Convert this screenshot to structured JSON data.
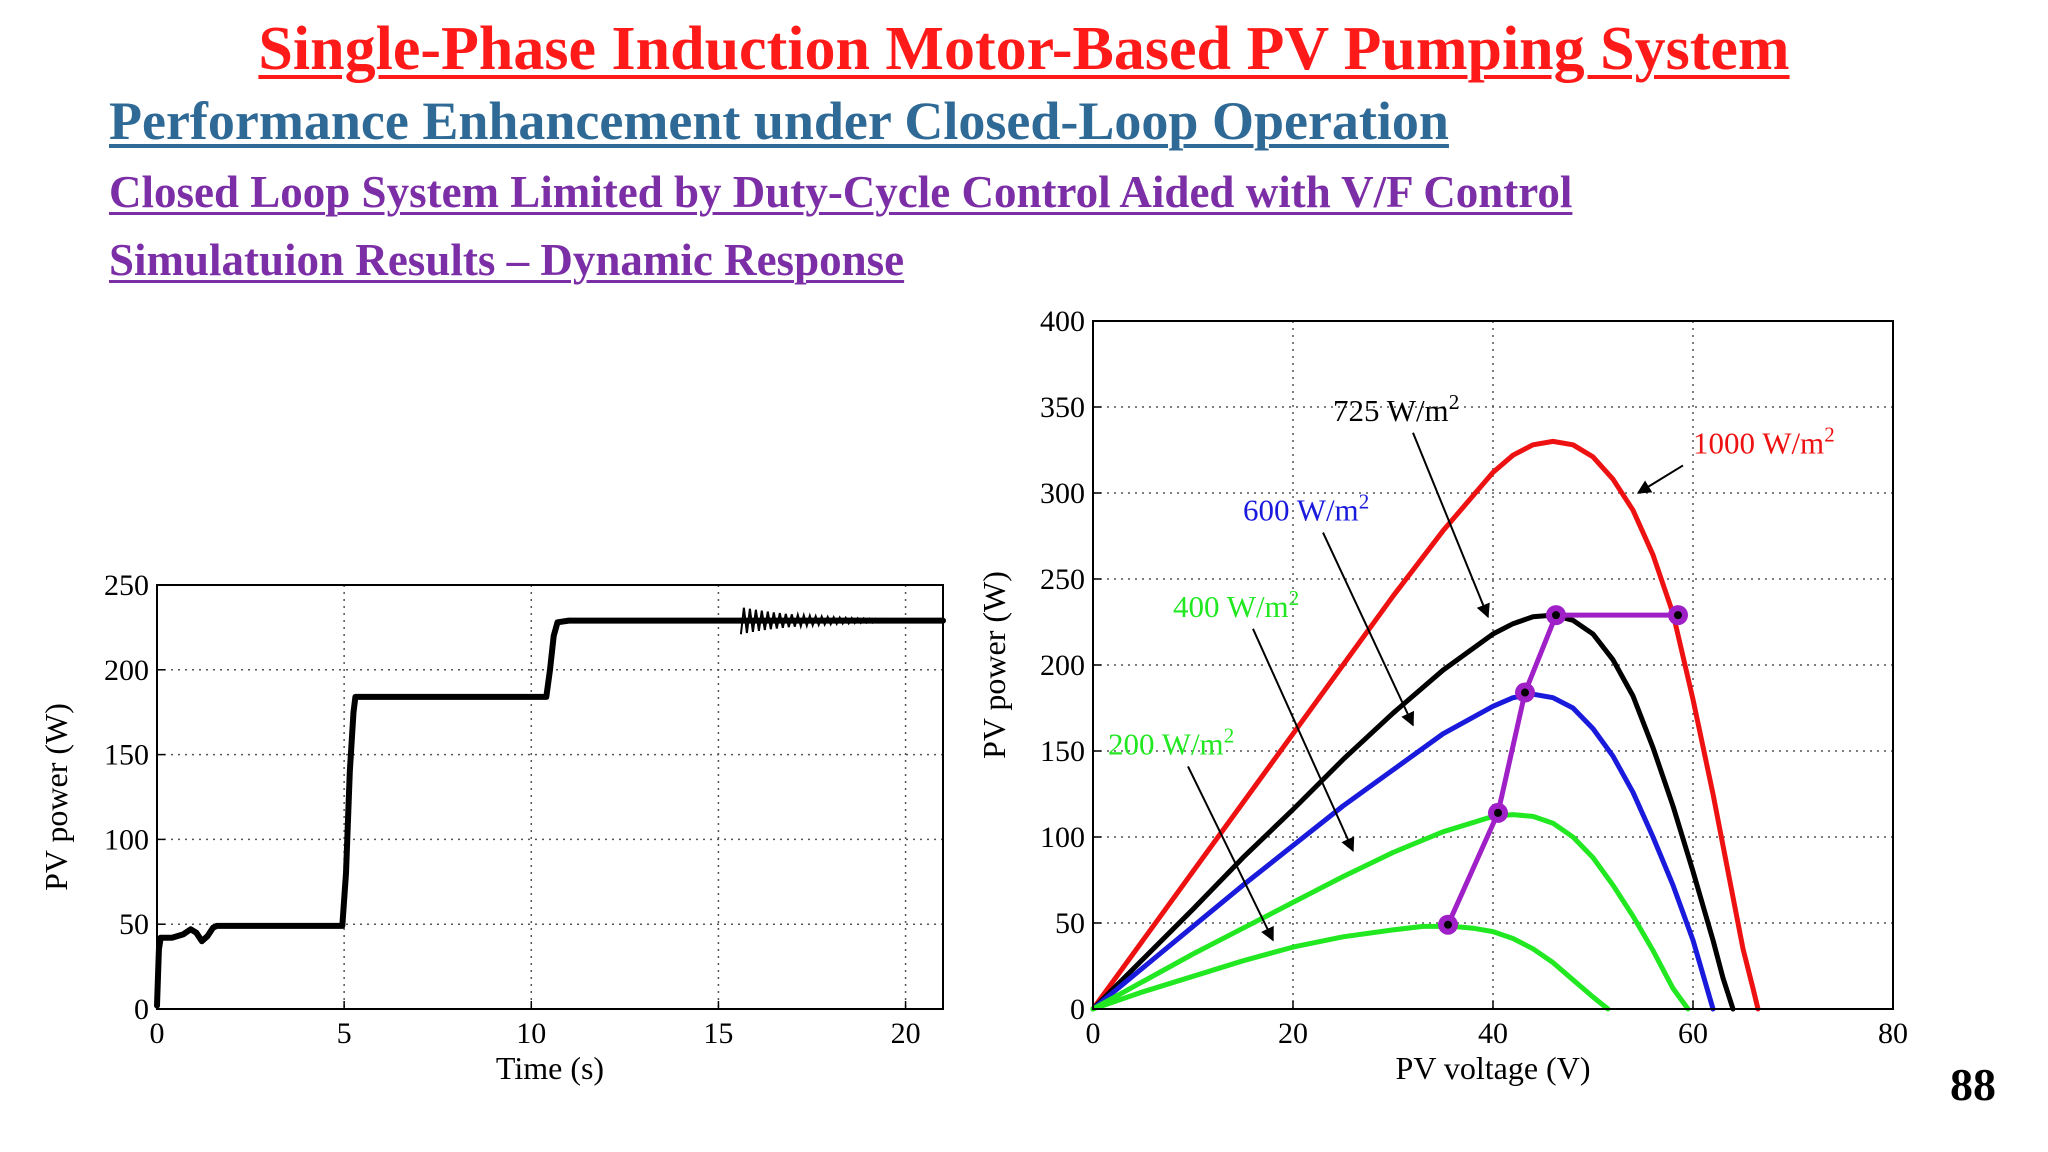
{
  "slide": {
    "title": "Single-Phase Induction Motor-Based PV Pumping System",
    "subtitle": "Performance Enhancement under Closed-Loop Operation",
    "line3": "Closed Loop System Limited by Duty-Cycle Control Aided with V/F Control",
    "line4": "Simulatuion Results – Dynamic Response",
    "page_number": "88"
  },
  "colors": {
    "title": "#ff1a1a",
    "subtitle": "#2f6a96",
    "purple": "#7b2ea6",
    "red": "#ee1111",
    "black": "#000000",
    "blue": "#1a1adc",
    "green": "#22e822",
    "magenta": "#a020c8"
  },
  "chart_data": [
    {
      "type": "line",
      "xlabel": "Time (s)",
      "ylabel": "PV power (W)",
      "xlim": [
        0,
        21
      ],
      "ylim": [
        0,
        250
      ],
      "xticks": [
        0,
        5,
        10,
        15,
        20
      ],
      "yticks": [
        0,
        50,
        100,
        150,
        200,
        250
      ],
      "grid": true,
      "series": [
        {
          "color": "#000000",
          "x": [
            0,
            0.05,
            0.1,
            0.4,
            0.7,
            0.9,
            1.05,
            1.2,
            1.35,
            1.5,
            1.6,
            2.0,
            3.0,
            4.0,
            4.95,
            5.05,
            5.15,
            5.25,
            5.3,
            6,
            7,
            8,
            9,
            10,
            10.4,
            10.5,
            10.6,
            10.7,
            11,
            12,
            13,
            14,
            15,
            15.5,
            16,
            17,
            18,
            19,
            20,
            21
          ],
          "y": [
            2,
            35,
            42,
            42,
            44,
            47,
            45,
            40,
            43,
            48,
            49,
            49,
            49,
            49,
            49,
            80,
            140,
            175,
            184,
            184,
            184,
            184,
            184,
            184,
            184,
            200,
            220,
            228,
            229,
            229,
            229,
            229,
            229,
            229,
            229,
            229,
            229,
            229,
            229,
            229
          ]
        }
      ]
    },
    {
      "type": "line",
      "xlabel": "PV voltage (V)",
      "ylabel": "PV power (W)",
      "xlim": [
        0,
        80
      ],
      "ylim": [
        0,
        400
      ],
      "xticks": [
        0,
        20,
        40,
        60,
        80
      ],
      "yticks": [
        0,
        50,
        100,
        150,
        200,
        250,
        300,
        350,
        400
      ],
      "grid": true,
      "series": [
        {
          "name": "1000 W/m2",
          "color": "#ee1111",
          "x": [
            0,
            5,
            10,
            15,
            20,
            25,
            30,
            35,
            40,
            42,
            44,
            46,
            48,
            50,
            52,
            54,
            56,
            58,
            60,
            62,
            64,
            65,
            66,
            66.5
          ],
          "y": [
            0,
            40,
            80,
            120,
            160,
            200,
            240,
            278,
            312,
            322,
            328,
            330,
            328,
            321,
            308,
            290,
            264,
            230,
            180,
            125,
            65,
            35,
            12,
            0
          ]
        },
        {
          "name": "725 W/m2",
          "color": "#000000",
          "x": [
            0,
            5,
            10,
            15,
            20,
            25,
            30,
            35,
            40,
            42,
            44,
            46,
            48,
            50,
            52,
            54,
            56,
            58,
            60,
            62,
            63,
            64
          ],
          "y": [
            0,
            29,
            58,
            88,
            116,
            145,
            172,
            197,
            218,
            224,
            228,
            229,
            226,
            218,
            203,
            182,
            152,
            118,
            80,
            40,
            18,
            0
          ]
        },
        {
          "name": "600 W/m2",
          "color": "#1a1adc",
          "x": [
            0,
            5,
            10,
            15,
            20,
            25,
            30,
            35,
            40,
            42,
            44,
            46,
            48,
            50,
            52,
            54,
            56,
            58,
            60,
            61,
            62
          ],
          "y": [
            0,
            24,
            48,
            72,
            95,
            118,
            139,
            160,
            176,
            181,
            183,
            181,
            175,
            163,
            147,
            126,
            100,
            72,
            40,
            20,
            0
          ]
        },
        {
          "name": "400 W/m2",
          "color": "#22e822",
          "x": [
            0,
            5,
            10,
            15,
            20,
            25,
            30,
            35,
            40,
            42,
            44,
            46,
            48,
            50,
            52,
            54,
            56,
            58,
            59.5
          ],
          "y": [
            0,
            16,
            32,
            47,
            62,
            77,
            91,
            103,
            112,
            113,
            112,
            108,
            100,
            88,
            72,
            54,
            34,
            12,
            0
          ]
        },
        {
          "name": "200 W/m2",
          "color": "#22e822",
          "x": [
            0,
            5,
            10,
            15,
            20,
            25,
            30,
            33,
            36,
            38,
            40,
            42,
            44,
            46,
            48,
            50,
            51.5
          ],
          "y": [
            0,
            10,
            19,
            28,
            36,
            42,
            46,
            48,
            48,
            47,
            45,
            41,
            35,
            27,
            17,
            7,
            0
          ]
        },
        {
          "type": "operating-points",
          "color": "#a020c8",
          "x": [
            35.5,
            40.5,
            43.2,
            46.3,
            58.5
          ],
          "y": [
            49,
            114,
            184,
            229,
            229
          ]
        }
      ],
      "annotations": [
        {
          "text": "725 W/m",
          "sup": "2",
          "color": "#000000",
          "x": 24,
          "y": 342,
          "arrow_to": [
            39.5,
            228
          ]
        },
        {
          "text": "1000 W/m",
          "sup": "2",
          "color": "#ee1111",
          "x": 60,
          "y": 323,
          "arrow_to": [
            54.5,
            300
          ]
        },
        {
          "text": "600 W/m",
          "sup": "2",
          "color": "#1a1adc",
          "x": 15,
          "y": 284,
          "arrow_to": [
            32,
            165
          ]
        },
        {
          "text": "400 W/m",
          "sup": "2",
          "color": "#22e822",
          "x": 8,
          "y": 228,
          "arrow_to": [
            26,
            92
          ]
        },
        {
          "text": "200 W/m",
          "sup": "2",
          "color": "#22e822",
          "x": 1.5,
          "y": 148,
          "arrow_to": [
            18,
            40
          ]
        }
      ]
    }
  ]
}
